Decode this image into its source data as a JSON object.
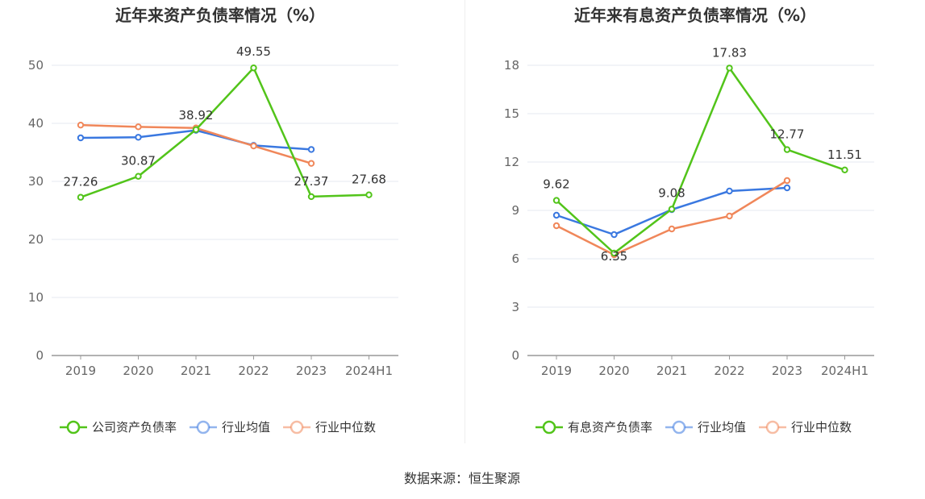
{
  "chart_data": [
    {
      "type": "line",
      "title": "近年来资产负债率情况（%）",
      "categories": [
        "2019",
        "2020",
        "2021",
        "2022",
        "2023",
        "2024H1"
      ],
      "ylim": [
        0,
        50
      ],
      "yticks": [
        0,
        10,
        20,
        30,
        40,
        50
      ],
      "grid": true,
      "legend_position": "bottom",
      "series": [
        {
          "name": "公司资产负债率",
          "color": "#52c41a",
          "values": [
            27.26,
            30.87,
            38.92,
            49.55,
            27.37,
            27.68
          ],
          "labels": [
            "27.26",
            "30.87",
            "38.92",
            "49.55",
            "27.37",
            "27.68"
          ]
        },
        {
          "name": "行业均值",
          "color": "#3a78e0",
          "values": [
            37.5,
            37.6,
            38.8,
            36.2,
            35.5,
            null
          ]
        },
        {
          "name": "行业中位数",
          "color": "#f0875a",
          "values": [
            39.7,
            39.4,
            39.2,
            36.1,
            33.1,
            null
          ]
        }
      ]
    },
    {
      "type": "line",
      "title": "近年来有息资产负债率情况（%）",
      "categories": [
        "2019",
        "2020",
        "2021",
        "2022",
        "2023",
        "2024H1"
      ],
      "ylim": [
        0,
        18
      ],
      "yticks": [
        0,
        3,
        6,
        9,
        12,
        15,
        18
      ],
      "grid": true,
      "legend_position": "bottom",
      "series": [
        {
          "name": "有息资产负债率",
          "color": "#52c41a",
          "values": [
            9.62,
            6.35,
            9.08,
            17.83,
            12.77,
            11.51
          ],
          "labels": [
            "9.62",
            "6.35",
            "9.08",
            "17.83",
            "12.77",
            "11.51"
          ]
        },
        {
          "name": "行业均值",
          "color": "#3a78e0",
          "values": [
            8.7,
            7.5,
            9.05,
            10.2,
            10.4,
            null
          ]
        },
        {
          "name": "行业中位数",
          "color": "#f0875a",
          "values": [
            8.05,
            6.25,
            7.85,
            8.65,
            10.85,
            null
          ]
        }
      ]
    }
  ],
  "source": "数据来源：恒生聚源"
}
